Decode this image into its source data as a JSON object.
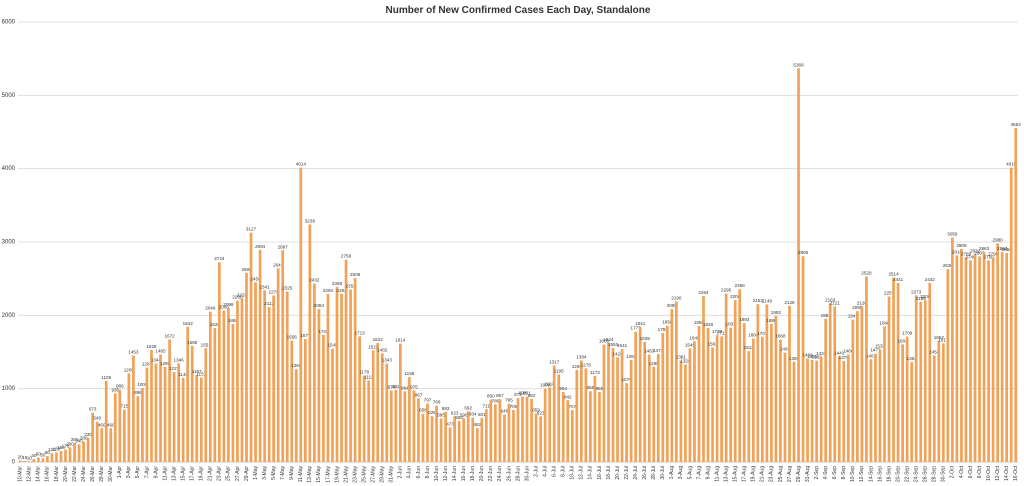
{
  "chart_data": {
    "type": "bar",
    "title": "Number of New Confirmed Cases Each Day, Standalone",
    "color": "#f0a358",
    "grid": true,
    "ylim": [
      0,
      6000
    ],
    "yticks": [
      0,
      1000,
      2000,
      3000,
      4000,
      5000,
      6000
    ],
    "categories": [
      "10-Mar",
      null,
      "12-Mar",
      null,
      "14-Mar",
      null,
      "16-Mar",
      null,
      "18-Mar",
      null,
      "20-Mar",
      null,
      "22-Mar",
      null,
      "24-Mar",
      null,
      "26-Mar",
      null,
      "28-Mar",
      null,
      "30-Mar",
      null,
      "1-Apr",
      null,
      "3-Apr",
      null,
      "5-Apr",
      null,
      "7-Apr",
      null,
      "9-Apr",
      null,
      "11-Apr",
      null,
      "13-Apr",
      null,
      "15-Apr",
      null,
      "17-Apr",
      null,
      "19-Apr",
      null,
      "21-Apr",
      null,
      "23-Apr",
      null,
      "25-Apr",
      null,
      "27-Apr",
      null,
      "29-Apr",
      null,
      "1-May",
      null,
      "3-May",
      null,
      "5-May",
      null,
      "7-May",
      null,
      "9-May",
      null,
      "11-May",
      null,
      "13-May",
      null,
      "15-May",
      null,
      "17-May",
      null,
      "19-May",
      null,
      "21-May",
      null,
      "23-May",
      null,
      "25-May",
      null,
      "27-May",
      null,
      "29-May",
      null,
      "31-May",
      null,
      "2-Jun",
      null,
      "4-Jun",
      null,
      "6-Jun",
      null,
      "8-Jun",
      null,
      "10-Jun",
      null,
      "12-Jun",
      null,
      "14-Jun",
      null,
      "16-Jun",
      null,
      "18-Jun",
      null,
      "20-Jun",
      null,
      "22-Jun",
      null,
      "24-Jun",
      null,
      "26-Jun",
      null,
      "28-Jun",
      null,
      "30-Jun",
      null,
      "2-Jul",
      null,
      "4-Jul",
      null,
      "6-Jul",
      null,
      "8-Jul",
      null,
      "10-Jul",
      null,
      "12-Jul",
      null,
      "14-Jul",
      null,
      "16-Jul",
      null,
      "18-Jul",
      null,
      "20-Jul",
      null,
      "22-Jul",
      null,
      "24-Jul",
      null,
      "26-Jul",
      null,
      "28-Jul",
      null,
      "30-Jul",
      null,
      "1-Aug",
      null,
      "3-Aug",
      null,
      "5-Aug",
      null,
      "7-Aug",
      null,
      "9-Aug",
      null,
      "11-Aug",
      null,
      "13-Aug",
      null,
      "15-Aug",
      null,
      "17-Aug",
      null,
      "19-Aug",
      null,
      "21-Aug",
      null,
      "23-Aug",
      null,
      "25-Aug",
      null,
      "27-Aug",
      null,
      "29-Aug",
      null,
      "31-Aug",
      null,
      "2-Sep",
      null,
      "4-Sep",
      null,
      "6-Sep",
      null,
      "8-Sep",
      null,
      "10-Sep",
      null,
      "12-Sep",
      null,
      "14-Sep",
      null,
      "16-Sep",
      null,
      "18-Sep",
      null,
      "20-Sep",
      null,
      "22-Sep",
      null,
      "24-Sep",
      null,
      "26-Sep",
      null,
      "28-Sep",
      null,
      "30-Sep",
      null,
      "2-Oct",
      null,
      "4-Oct",
      null,
      "6-Oct",
      null,
      "8-Oct",
      null,
      "10-Oct",
      null,
      "12-Oct",
      null,
      "14-Oct",
      null,
      "16-Oct"
    ],
    "values": [
      20,
      15,
      10,
      40,
      60,
      50,
      80,
      120,
      130,
      150,
      170,
      200,
      260,
      240,
      280,
      330,
      673,
      549,
      460,
      1105,
      460,
      936,
      986,
      715,
      1209,
      1453,
      898,
      1008,
      1287,
      1528,
      1344,
      1465,
      1296,
      1672,
      1227,
      1346,
      1146,
      1842,
      1585,
      1187,
      1151,
      1551,
      2049,
      1826,
      2724,
      2066,
      2098,
      1880,
      2200,
      2232,
      2580,
      3127,
      2450,
      2894,
      2341,
      2112,
      2270,
      2641,
      2887,
      2325,
      1656,
      1266,
      4014,
      1677,
      3239,
      2432,
      2084,
      1734,
      2294,
      1545,
      2388,
      2294,
      2758,
      2352,
      2508,
      1713,
      1178,
      1111,
      1522,
      1622,
      1482,
      1343,
      974,
      982,
      1614,
      964,
      1158,
      975,
      867,
      658,
      797,
      625,
      768,
      595,
      683,
      473,
      623,
      560,
      596,
      692,
      604,
      462,
      601,
      719,
      850,
      786,
      857,
      646,
      795,
      708,
      872,
      892,
      891,
      862,
      659,
      623,
      1000,
      1018,
      1317,
      1195,
      954,
      842,
      707,
      1255,
      1384,
      1276,
      965,
      1173,
      955,
      1600,
      1624,
      1553,
      1428,
      1541,
      1076,
      1393,
      1777,
      1841,
      1639,
      1463,
      1298,
      1471,
      1759,
      1858,
      2085,
      2190,
      1381,
      1328,
      1549,
      1645,
      1856,
      2264,
      1826,
      1562,
      1730,
      1711,
      2295,
      1832,
      2206,
      2356,
      1893,
      1512,
      1684,
      2152,
      1707,
      2149,
      1880,
      1992,
      1668,
      1491,
      2128,
      1366,
      5368,
      2806,
      1409,
      1391,
      1382,
      1433,
      1953,
      2163,
      2121,
      1441,
      1378,
      1466,
      1941,
      2056,
      2120,
      2529,
      1401,
      1477,
      1533,
      1848,
      2257,
      2514,
      2441,
      1604,
      1709,
      1362,
      2273,
      2185,
      2206,
      2442,
      1453,
      1652,
      1617,
      2630,
      3059,
      2818,
      2905,
      2789,
      2749,
      2832,
      2803,
      2863,
      2750,
      2790,
      2980,
      2863,
      2850,
      4015,
      4554
    ]
  }
}
